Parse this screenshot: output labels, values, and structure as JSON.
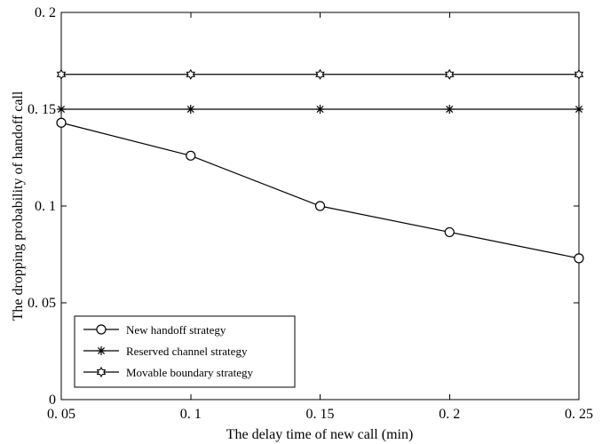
{
  "chart_data": {
    "type": "line",
    "xlabel": "The delay time of new call (min)",
    "ylabel": "The dropping probability of handoff call",
    "xlim": [
      0.05,
      0.25
    ],
    "ylim": [
      0,
      0.2
    ],
    "x": [
      0.05,
      0.1,
      0.15,
      0.2,
      0.25
    ],
    "x_tick_labels": [
      "0. 05",
      "0. 1",
      "0. 15",
      "0. 2",
      "0. 25"
    ],
    "y_ticks": [
      0,
      0.05,
      0.1,
      0.15,
      0.2
    ],
    "y_tick_labels": [
      "0",
      "0. 05",
      "0. 1",
      "0. 15",
      "0. 2"
    ],
    "grid": false,
    "legend_position": "bottom-left",
    "series": [
      {
        "name": "New handoff strategy",
        "marker": "circle",
        "values": [
          0.143,
          0.126,
          0.1,
          0.0865,
          0.073
        ]
      },
      {
        "name": "Reserved channel strategy",
        "marker": "asterisk",
        "values": [
          0.15,
          0.15,
          0.15,
          0.15,
          0.15
        ]
      },
      {
        "name": "Movable boundary  strategy",
        "marker": "hexagram",
        "values": [
          0.168,
          0.168,
          0.168,
          0.168,
          0.168
        ]
      }
    ],
    "colors": {
      "line": "#000000",
      "background": "#ffffff"
    }
  }
}
